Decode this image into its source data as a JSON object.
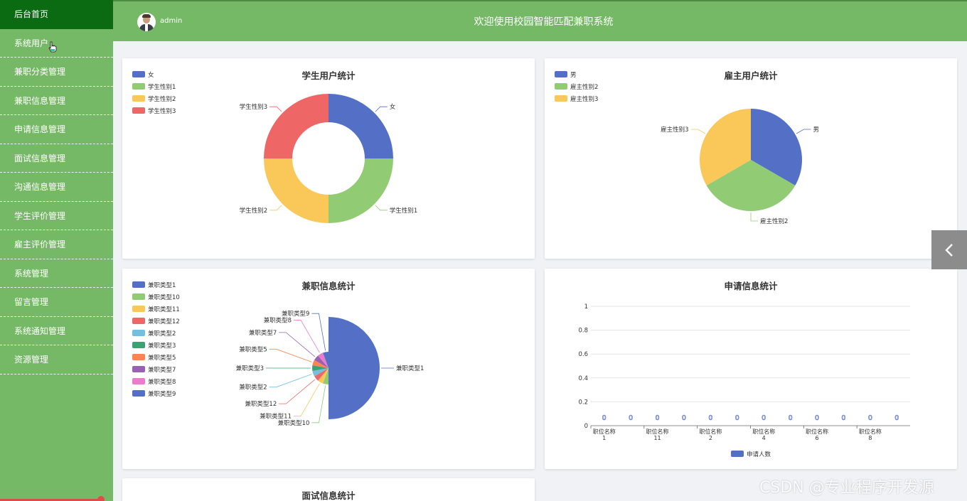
{
  "sidebar": {
    "items": [
      {
        "label": "后台首页",
        "name": "sidebar-item-home",
        "active": true
      },
      {
        "label": "系统用户",
        "name": "sidebar-item-system-users"
      },
      {
        "label": "兼职分类管理",
        "name": "sidebar-item-job-category"
      },
      {
        "label": "兼职信息管理",
        "name": "sidebar-item-job-info"
      },
      {
        "label": "申请信息管理",
        "name": "sidebar-item-application-info"
      },
      {
        "label": "面试信息管理",
        "name": "sidebar-item-interview-info"
      },
      {
        "label": "沟通信息管理",
        "name": "sidebar-item-communication-info"
      },
      {
        "label": "学生评价管理",
        "name": "sidebar-item-student-review"
      },
      {
        "label": "雇主评价管理",
        "name": "sidebar-item-employer-review"
      },
      {
        "label": "系统管理",
        "name": "sidebar-item-system-management"
      },
      {
        "label": "留言管理",
        "name": "sidebar-item-message"
      },
      {
        "label": "系统通知管理",
        "name": "sidebar-item-notification"
      },
      {
        "label": "资源管理",
        "name": "sidebar-item-resources"
      }
    ]
  },
  "header": {
    "username": "admin",
    "title": "欢迎使用校园智能匹配兼职系统"
  },
  "colors": {
    "sidebar": "#75b966",
    "active": "#0a6b12",
    "palette": [
      "#5470c6",
      "#91cc75",
      "#fac858",
      "#ee6666",
      "#73c0de",
      "#3ba272",
      "#fc8452",
      "#9a60b4",
      "#ea7ccc"
    ]
  },
  "watermark": "CSDN @专业程序开发源",
  "charts": {
    "student": {
      "title": "学生用户统计"
    },
    "employer": {
      "title": "雇主用户统计"
    },
    "job": {
      "title": "兼职信息统计"
    },
    "application": {
      "title": "申请信息统计"
    },
    "interview": {
      "title": "面试信息统计"
    }
  },
  "chart_data": [
    {
      "type": "pie",
      "id": "student",
      "title": "学生用户统计",
      "donut": true,
      "legend_position": "top-left",
      "categories": [
        "女",
        "学生性别1",
        "学生性别2",
        "学生性别3"
      ],
      "values": [
        1,
        1,
        1,
        1
      ],
      "colors": [
        "#5470c6",
        "#91cc75",
        "#fac858",
        "#ee6666"
      ]
    },
    {
      "type": "pie",
      "id": "employer",
      "title": "雇主用户统计",
      "donut": false,
      "legend_position": "top-left",
      "categories": [
        "男",
        "雇主性别2",
        "雇主性别3"
      ],
      "values": [
        1,
        1,
        1
      ],
      "colors": [
        "#5470c6",
        "#91cc75",
        "#fac858"
      ]
    },
    {
      "type": "pie",
      "id": "job",
      "title": "兼职信息统计",
      "rose": true,
      "legend_position": "top-left",
      "legend": [
        "兼职类型1",
        "兼职类型10",
        "兼职类型11",
        "兼职类型12",
        "兼职类型2",
        "兼职类型3",
        "兼职类型5",
        "兼职类型7",
        "兼职类型8",
        "兼职类型9"
      ],
      "categories": [
        "兼职类型1",
        "兼职类型10",
        "兼职类型11",
        "兼职类型12",
        "兼职类型2",
        "兼职类型3",
        "兼职类型5",
        "兼职类型7",
        "兼职类型8",
        "兼职类型9"
      ],
      "values": [
        9,
        1,
        1,
        1,
        1,
        1,
        1,
        1,
        1,
        1
      ],
      "colors": [
        "#5470c6",
        "#91cc75",
        "#fac858",
        "#ee6666",
        "#73c0de",
        "#3ba272",
        "#fc8452",
        "#9a60b4",
        "#ea7ccc",
        "#5470c6"
      ]
    },
    {
      "type": "bar",
      "id": "application",
      "title": "申请信息统计",
      "categories": [
        "职位名称1",
        "职位名称11",
        "职位名称2",
        "职位名称4",
        "职位名称6",
        "职位名称8",
        "",
        "",
        "",
        "",
        "",
        ""
      ],
      "x_tick_labels": [
        [
          "职位名称",
          "1"
        ],
        [
          "职位名称",
          "11"
        ],
        [
          "职位名称",
          "2"
        ],
        [
          "职位名称",
          "4"
        ],
        [
          "职位名称",
          "6"
        ],
        [
          "职位名称",
          "8"
        ]
      ],
      "series": [
        {
          "name": "申请人数",
          "values": [
            0,
            0,
            0,
            0,
            0,
            0,
            0,
            0,
            0,
            0,
            0,
            0
          ]
        }
      ],
      "ylim": [
        0,
        1
      ],
      "yticks": [
        0,
        0.2,
        0.4,
        0.6,
        0.8,
        1
      ],
      "grid": true,
      "legend_position": "bottom"
    }
  ]
}
